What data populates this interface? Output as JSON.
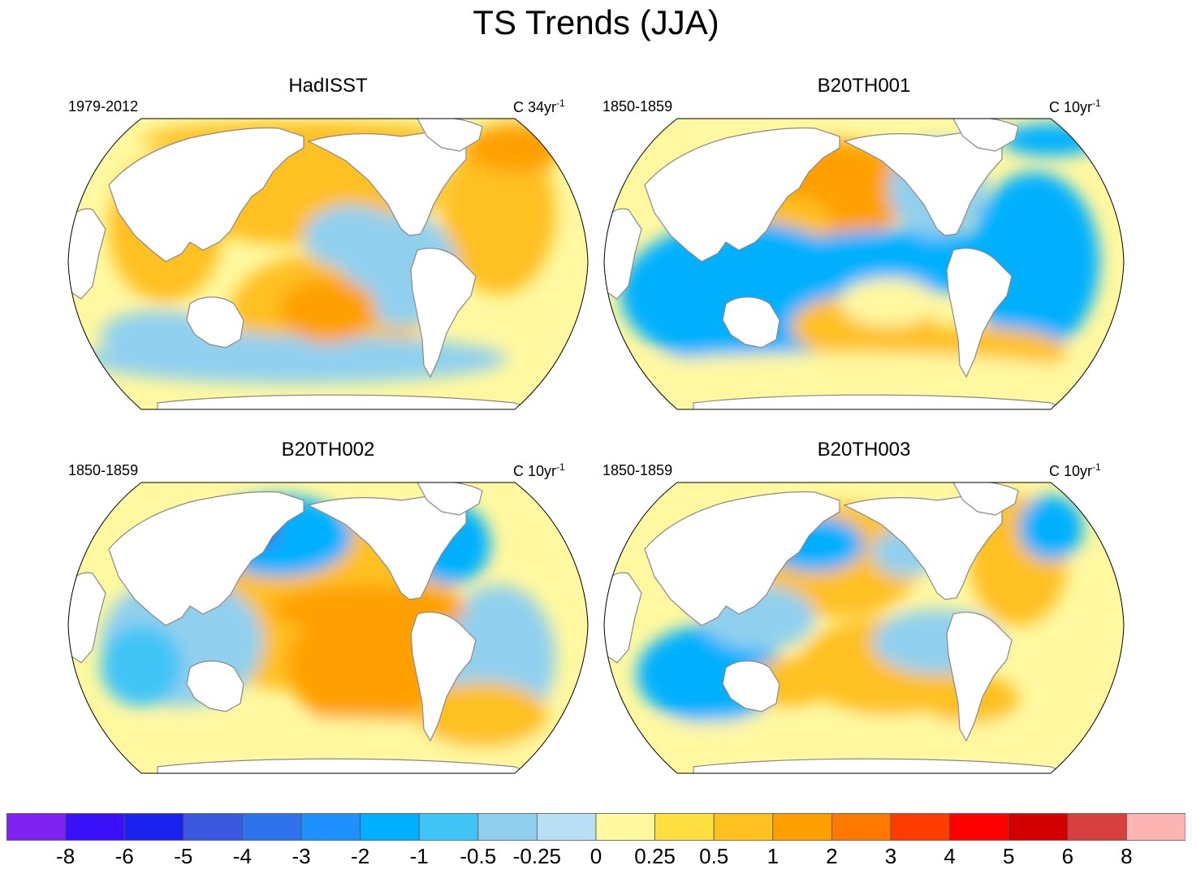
{
  "title": "TS Trends (JJA)",
  "panels": [
    {
      "id": "hadisst",
      "title": "HadISST",
      "period": "1979-2012",
      "unit_main": "C 34yr",
      "unit_exp": "-1"
    },
    {
      "id": "b20th001",
      "title": "B20TH001",
      "period": "1850-1859",
      "unit_main": "C 10yr",
      "unit_exp": "-1"
    },
    {
      "id": "b20th002",
      "title": "B20TH002",
      "period": "1850-1859",
      "unit_main": "C 10yr",
      "unit_exp": "-1"
    },
    {
      "id": "b20th003",
      "title": "B20TH003",
      "period": "1850-1859",
      "unit_main": "C 10yr",
      "unit_exp": "-1"
    }
  ],
  "colorbar": {
    "labels": [
      "-8",
      "-6",
      "-5",
      "-4",
      "-3",
      "-2",
      "-1",
      "-0.5",
      "-0.25",
      "0",
      "0.25",
      "0.5",
      "1",
      "2",
      "3",
      "4",
      "5",
      "6",
      "8"
    ],
    "colors": [
      "#7f22f0",
      "#3a10f8",
      "#1a22f0",
      "#3a58e0",
      "#2e72ee",
      "#1e90ff",
      "#00b0ff",
      "#40c4f6",
      "#90d0ee",
      "#b8e0f4",
      "#fff8a0",
      "#ffe040",
      "#ffc020",
      "#ffa000",
      "#ff7800",
      "#ff3c00",
      "#ff0000",
      "#d40000",
      "#d84040",
      "#ffb4b4"
    ]
  },
  "map": {
    "ocean_background_color": "#fff8a0",
    "land_color": "#ffffff",
    "coast_color": "#888888"
  }
}
